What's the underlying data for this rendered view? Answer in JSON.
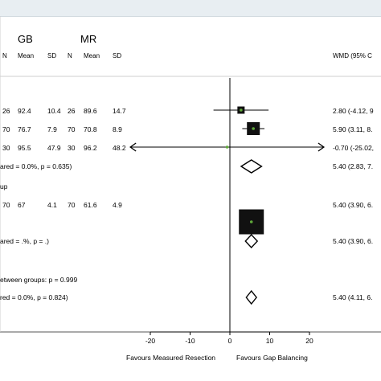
{
  "colors": {
    "square": "#111111",
    "point": "#5fa83a",
    "line": "#000000",
    "topbar": "#e8eef2"
  },
  "headers": {
    "gb": "GB",
    "mr": "MR",
    "n1": "N",
    "mean1": "Mean",
    "sd1": "SD",
    "n2": "N",
    "mean2": "Mean",
    "sd2": "SD",
    "wmd": "WMD (95% C"
  },
  "rows": [
    {
      "cells": [
        "26",
        "92.4",
        "10.4",
        "26",
        "89.6",
        "14.7"
      ],
      "wmd_text": "2.80 (-4.12, 9"
    },
    {
      "cells": [
        "70",
        "76.7",
        "7.9",
        "70",
        "70.8",
        "8.9"
      ],
      "wmd_text": "5.90 (3.11, 8."
    },
    {
      "cells": [
        "30",
        "95.5",
        "47.9",
        "30",
        "96.2",
        "48.2"
      ],
      "wmd_text": "-0.70 (-25.02,"
    },
    {
      "cells": [
        "70",
        "67",
        "4.1",
        "70",
        "61.6",
        "4.9"
      ],
      "wmd_text": "5.40 (3.90, 6."
    }
  ],
  "subtotals": [
    {
      "label": "ared = 0.0%, p = 0.635)",
      "wmd_text": "5.40 (2.83, 7."
    },
    {
      "label": "ared = .%, p = .)",
      "wmd_text": "5.40 (3.90, 6."
    }
  ],
  "group_label": "up",
  "between_label": "etween groups: p = 0.999",
  "overall": {
    "label": "red = 0.0%, p = 0.824)",
    "wmd_text": "5.40 (4.11, 6."
  },
  "axis": {
    "favours_left": "Favours Measured Resection",
    "favours_right": "Favours Gap Balancing"
  },
  "chart_data": {
    "type": "forest",
    "xlim": [
      -20,
      20
    ],
    "xticks": [
      "-20",
      "-10",
      "0",
      "10",
      "20"
    ],
    "xtick_values": [
      -20,
      -10,
      0,
      10,
      20
    ],
    "studies": [
      {
        "estimate": 2.8,
        "ci": [
          -4.12,
          9.72
        ],
        "weight": 0.2
      },
      {
        "estimate": 5.9,
        "ci": [
          3.11,
          8.69
        ],
        "weight": 0.6
      },
      {
        "estimate": -0.7,
        "ci": [
          -25.02,
          23.62
        ],
        "weight": 0.02
      },
      {
        "estimate": 5.4,
        "ci": [
          3.9,
          6.9
        ],
        "weight": 1.0
      }
    ],
    "subtotals": [
      {
        "estimate": 5.4,
        "ci": [
          2.83,
          7.97
        ]
      },
      {
        "estimate": 5.4,
        "ci": [
          3.9,
          6.9
        ]
      }
    ],
    "overall": {
      "estimate": 5.4,
      "ci": [
        4.11,
        6.69
      ]
    }
  }
}
